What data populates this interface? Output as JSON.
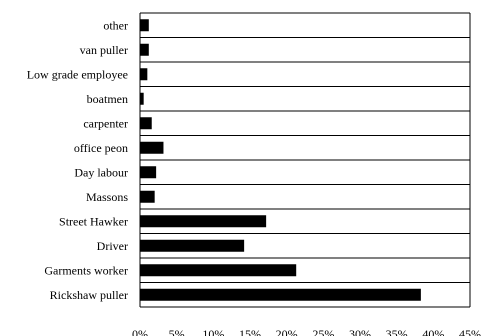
{
  "chart_data": {
    "type": "bar",
    "orientation": "horizontal",
    "title": "",
    "xlabel": "",
    "ylabel": "",
    "categories": [
      "other",
      "van puller",
      "Low grade employee",
      "boatmen",
      "carpenter",
      "office peon",
      "Day labour",
      "Massons",
      "Street Hawker",
      "Driver",
      "Garments worker",
      "Rickshaw puller"
    ],
    "values": [
      1.2,
      1.2,
      1.0,
      0.5,
      1.6,
      3.2,
      2.2,
      2.0,
      17.2,
      14.2,
      21.3,
      38.3
    ],
    "xlim": [
      0,
      45
    ],
    "x_ticks": [
      0,
      5,
      10,
      15,
      20,
      25,
      30,
      35,
      40,
      45
    ],
    "x_tick_labels": [
      "0%",
      "5%",
      "10%",
      "15%",
      "20%",
      "25%",
      "30%",
      "35%",
      "40%",
      "45%"
    ],
    "gridlines": "horizontal",
    "legend": "none",
    "bar_color": "#000000"
  }
}
